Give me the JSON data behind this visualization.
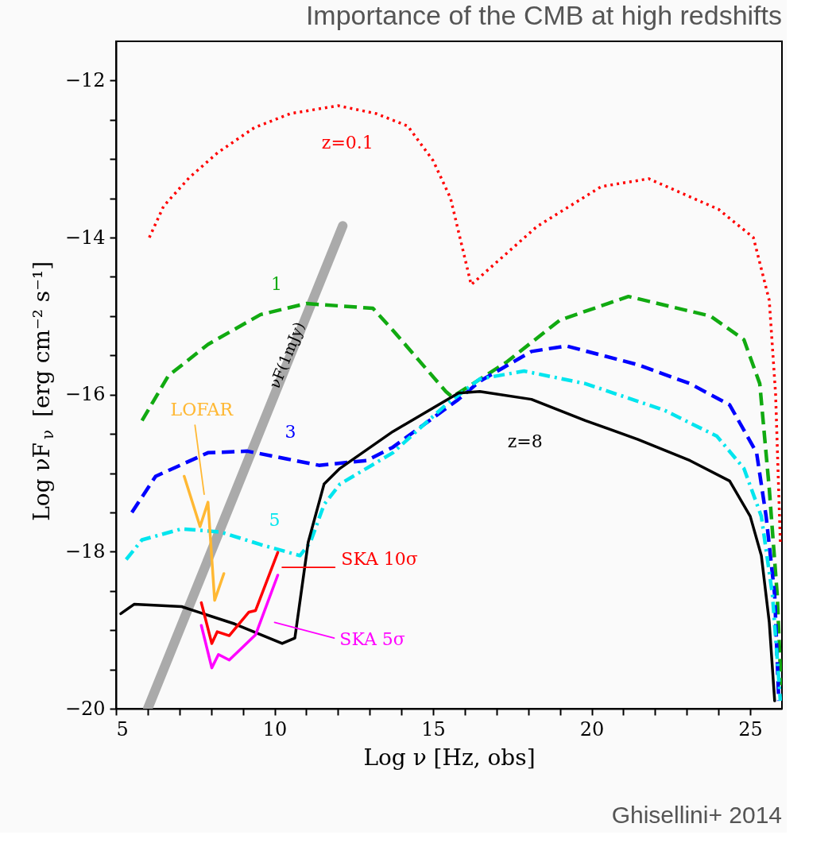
{
  "chart_data": {
    "type": "line",
    "title": "Importance of the CMB at high redshifts",
    "xlabel": "Log ν [Hz, obs]",
    "ylabel": "Log νF$_{ν}$ [erg cm⁻² s⁻¹]",
    "xlim": [
      5,
      26
    ],
    "ylim": [
      -20,
      -11.5
    ],
    "xticks": [
      5,
      {
        "value": 6,
        "label": null
      },
      {
        "value": 7,
        "label": null
      },
      {
        "value": 8,
        "label": null
      },
      {
        "value": 9,
        "label": null
      },
      10,
      {
        "value": 11,
        "label": null
      },
      {
        "value": 12,
        "label": null
      },
      {
        "value": 13,
        "label": null
      },
      {
        "value": 14,
        "label": null
      },
      15,
      {
        "value": 16,
        "label": null
      },
      {
        "value": 17,
        "label": null
      },
      {
        "value": 18,
        "label": null
      },
      {
        "value": 19,
        "label": null
      },
      20,
      {
        "value": 21,
        "label": null
      },
      {
        "value": 22,
        "label": null
      },
      {
        "value": 23,
        "label": null
      },
      {
        "value": 24,
        "label": null
      },
      25
    ],
    "yticks": [
      {
        "value": -20,
        "label": "−20"
      },
      {
        "value": -19.5,
        "label": null
      },
      {
        "value": -19,
        "label": null
      },
      {
        "value": -18.5,
        "label": null
      },
      {
        "value": -18,
        "label": "−18"
      },
      {
        "value": -17.5,
        "label": null
      },
      {
        "value": -17,
        "label": null
      },
      {
        "value": -16.5,
        "label": null
      },
      {
        "value": -16,
        "label": "−16"
      },
      {
        "value": -15.5,
        "label": null
      },
      {
        "value": -15,
        "label": null
      },
      {
        "value": -14.5,
        "label": null
      },
      {
        "value": -14,
        "label": "−14"
      },
      {
        "value": -13.5,
        "label": null
      },
      {
        "value": -13,
        "label": null
      },
      {
        "value": -12.5,
        "label": null
      },
      {
        "value": -12,
        "label": "−12"
      }
    ],
    "grid": false,
    "series": [
      {
        "color": "#aaaaaa",
        "line_style": "solid",
        "x": [
          6.0,
          12.15
        ],
        "values": [
          -20,
          -13.85
        ]
      },
      {
        "color": "#ff0000",
        "line_style": "dotted",
        "x": [
          6.05,
          6.5,
          7.3,
          8.2,
          9.36,
          10.5,
          12.0,
          13.2,
          14.2,
          15.0,
          15.55,
          16.2,
          18.27,
          20.3,
          21.8,
          24.0,
          25.1,
          25.6,
          25.8,
          25.95
        ],
        "values": [
          -14.0,
          -13.6,
          -13.24,
          -12.92,
          -12.6,
          -12.42,
          -12.32,
          -12.42,
          -12.58,
          -13.02,
          -13.5,
          -14.6,
          -13.86,
          -13.35,
          -13.25,
          -13.64,
          -14.0,
          -14.8,
          -16.0,
          -17.9
        ]
      },
      {
        "color": "#11aa11",
        "line_style": "dashed",
        "x": [
          5.82,
          6.65,
          7.9,
          9.56,
          11.0,
          13.1,
          13.73,
          15.4,
          15.6,
          17.3,
          19.0,
          21.16,
          23.75,
          24.8,
          25.3,
          25.6,
          25.85,
          25.97
        ],
        "values": [
          -16.33,
          -15.76,
          -15.36,
          -14.98,
          -14.84,
          -14.9,
          -15.18,
          -15.96,
          -16.03,
          -15.59,
          -15.05,
          -14.75,
          -15.0,
          -15.3,
          -15.86,
          -17.2,
          -18.55,
          -19.7
        ]
      },
      {
        "color": "#0000ff",
        "line_style": "dashed",
        "x": [
          5.5,
          6.25,
          7.9,
          9.14,
          10.4,
          11.4,
          12.9,
          13.73,
          15.8,
          16.47,
          18.1,
          19.2,
          21.46,
          23.1,
          24.35,
          25.2,
          25.5,
          25.77,
          25.9
        ],
        "values": [
          -17.5,
          -17.04,
          -16.74,
          -16.72,
          -16.82,
          -16.9,
          -16.84,
          -16.67,
          -16.06,
          -15.83,
          -15.45,
          -15.38,
          -15.62,
          -15.86,
          -16.13,
          -16.74,
          -17.55,
          -18.55,
          -19.9
        ]
      },
      {
        "color": "#00e5ee",
        "line_style": "dashdot",
        "x": [
          5.32,
          5.82,
          7.07,
          8.3,
          9.56,
          10.8,
          11.13,
          11.56,
          12.06,
          13.73,
          15.4,
          16.47,
          17.87,
          19.8,
          22.3,
          23.95,
          24.8,
          25.35,
          25.7,
          25.95
        ],
        "values": [
          -18.1,
          -17.85,
          -17.71,
          -17.75,
          -17.91,
          -18.05,
          -17.88,
          -17.4,
          -17.14,
          -16.74,
          -16.13,
          -15.8,
          -15.7,
          -15.86,
          -16.2,
          -16.53,
          -16.94,
          -17.55,
          -18.55,
          -19.9
        ]
      },
      {
        "color": "#000000",
        "line_style": "solid",
        "x": [
          5.15,
          5.57,
          7.07,
          8.74,
          10.24,
          10.64,
          11.06,
          11.56,
          12.06,
          13.73,
          15.8,
          16.47,
          18.1,
          19.8,
          21.46,
          23.1,
          24.35,
          25.0,
          25.35,
          25.6,
          25.77
        ],
        "values": [
          -18.79,
          -18.67,
          -18.7,
          -18.92,
          -19.17,
          -19.1,
          -17.88,
          -17.14,
          -16.94,
          -16.47,
          -15.98,
          -15.96,
          -16.06,
          -16.33,
          -16.57,
          -16.84,
          -17.1,
          -17.55,
          -18.05,
          -18.9,
          -19.9
        ]
      },
      {
        "color": "#ffb833",
        "line_style": "solid",
        "x": [
          7.15,
          7.65,
          7.9,
          8.11,
          8.4
        ],
        "values": [
          -17.04,
          -17.68,
          -17.37,
          -18.62,
          -18.28
        ]
      },
      {
        "color": "#ff0000",
        "line_style": "solid",
        "x": [
          7.69,
          8.02,
          8.19,
          8.57,
          9.19,
          9.4,
          10.1
        ],
        "values": [
          -18.65,
          -19.17,
          -19.02,
          -19.07,
          -18.77,
          -18.75,
          -18.01
        ]
      },
      {
        "color": "#ff00ff",
        "line_style": "solid",
        "x": [
          7.69,
          8.02,
          8.23,
          8.57,
          9.4,
          10.1
        ],
        "values": [
          -18.94,
          -19.48,
          -19.31,
          -19.38,
          -19.06,
          -18.3
        ]
      },
      {
        "color": "#ffb833",
        "line_style": "solid",
        "x": [
          7.78,
          7.49
        ],
        "values": [
          -17.27,
          -16.39
        ]
      },
      {
        "color": "#ff0000",
        "line_style": "solid",
        "x": [
          10.24,
          11.9
        ],
        "values": [
          -18.2,
          -18.2
        ]
      },
      {
        "color": "#ff00ff",
        "line_style": "solid",
        "x": [
          10.0,
          11.88
        ],
        "values": [
          -18.9,
          -19.1
        ]
      }
    ],
    "annotations": [
      "z=0.1",
      "1",
      "3",
      "5",
      "z=8",
      "νF(1mJy)",
      "LOFAR",
      "SKA 10σ",
      "SKA 5σ",
      "Ghisellini+ 2014"
    ]
  }
}
